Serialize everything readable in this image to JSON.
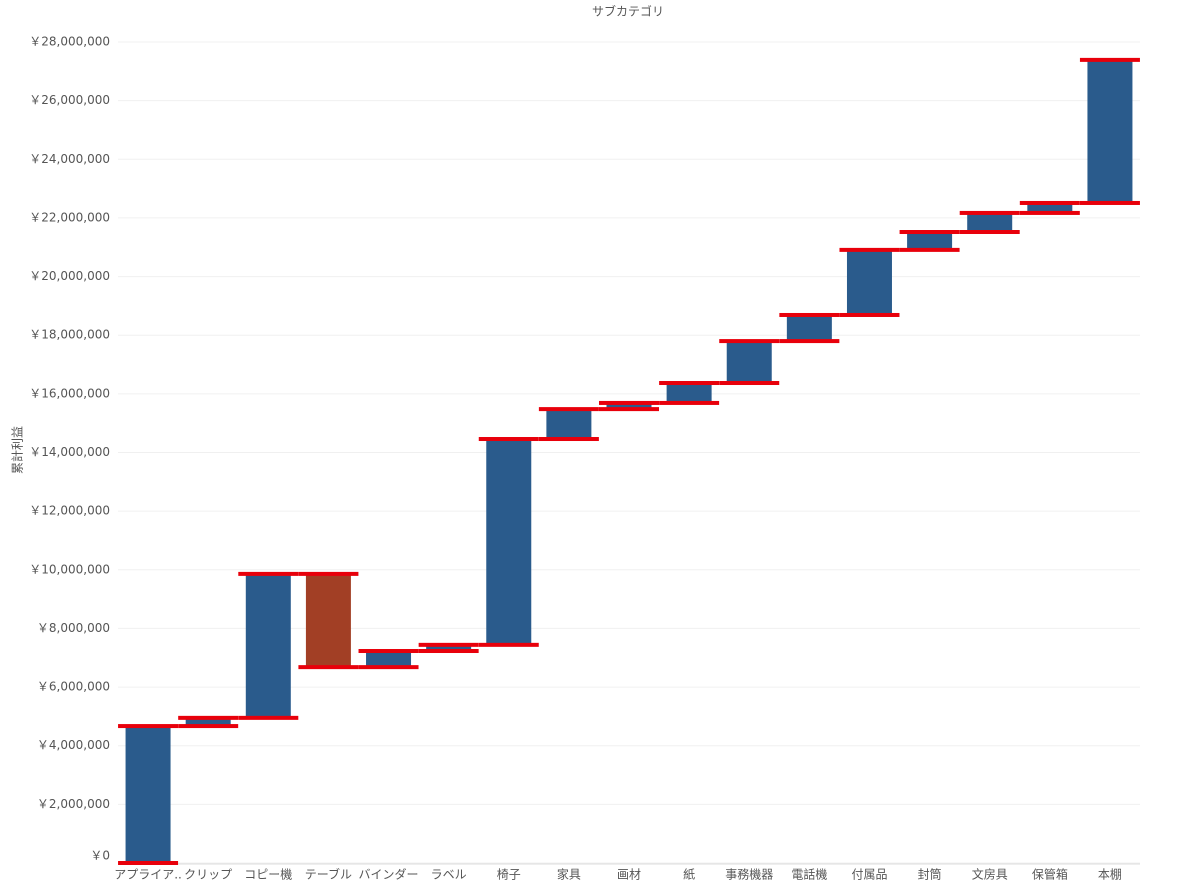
{
  "chart_data": {
    "type": "waterfall",
    "title": "サブカテゴリ",
    "y_label": "累計利益",
    "categories": [
      "アプライア..",
      "クリップ",
      "コピー機",
      "テーブル",
      "バインダー",
      "ラベル",
      "椅子",
      "家具",
      "画材",
      "紙",
      "事務機器",
      "電話機",
      "付属品",
      "封筒",
      "文房具",
      "保管箱",
      "本棚"
    ],
    "values": [
      4670000,
      280000,
      4910000,
      -3180000,
      550000,
      210000,
      7020000,
      1020000,
      210000,
      680000,
      1430000,
      890000,
      2220000,
      610000,
      650000,
      340000,
      4880000
    ],
    "color": "#2a5b8c",
    "negative_color": "#a23f25",
    "level_color": "#e8000b",
    "ylim": [
      0,
      28000000
    ],
    "yticks": [
      {
        "value": 0,
        "label": "￥0"
      },
      {
        "value": 2000000,
        "label": "￥2,000,000"
      },
      {
        "value": 4000000,
        "label": "￥4,000,000"
      },
      {
        "value": 6000000,
        "label": "￥6,000,000"
      },
      {
        "value": 8000000,
        "label": "￥8,000,000"
      },
      {
        "value": 10000000,
        "label": "￥10,000,000"
      },
      {
        "value": 12000000,
        "label": "￥12,000,000"
      },
      {
        "value": 14000000,
        "label": "￥14,000,000"
      },
      {
        "value": 16000000,
        "label": "￥16,000,000"
      },
      {
        "value": 18000000,
        "label": "￥18,000,000"
      },
      {
        "value": 20000000,
        "label": "￥20,000,000"
      },
      {
        "value": 22000000,
        "label": "￥22,000,000"
      },
      {
        "value": 24000000,
        "label": "￥24,000,000"
      },
      {
        "value": 26000000,
        "label": "￥26,000,000"
      },
      {
        "value": 28000000,
        "label": "￥28,000,000"
      }
    ],
    "grid": true
  }
}
